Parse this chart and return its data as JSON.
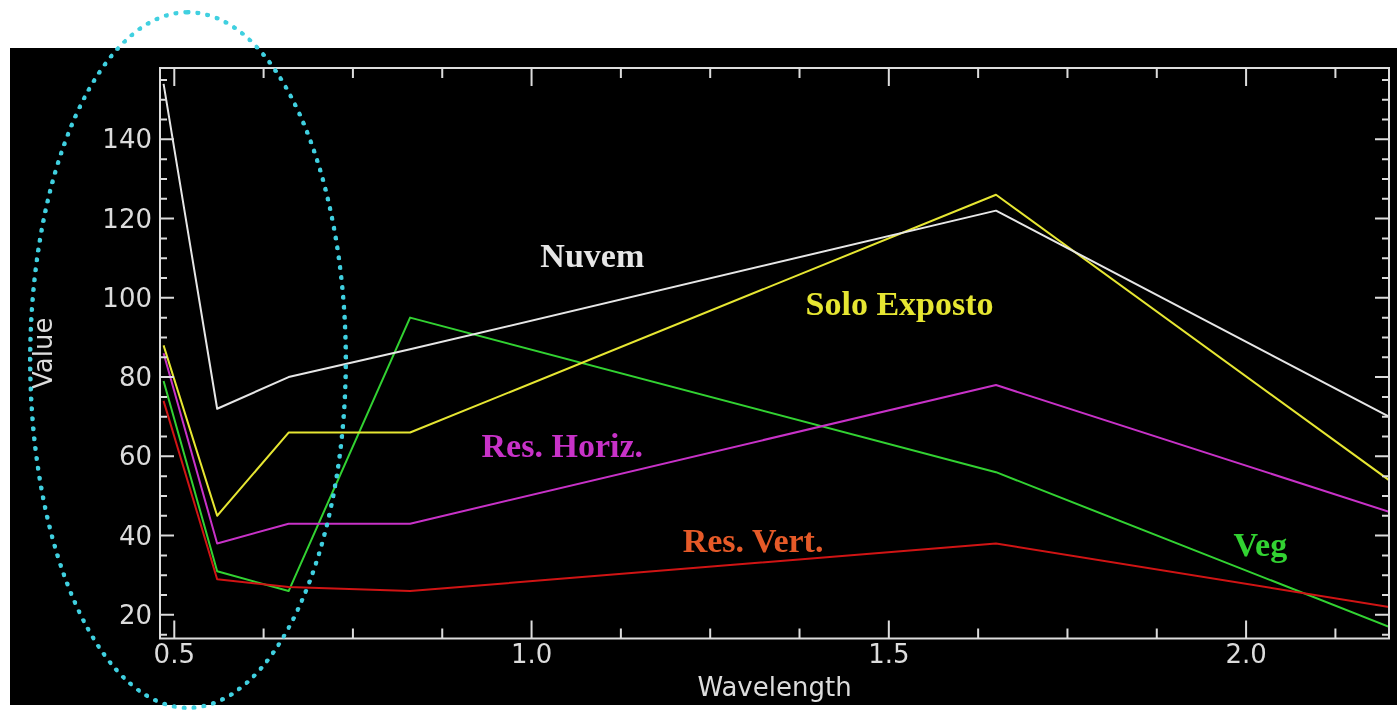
{
  "chart_data": {
    "type": "line",
    "xlabel": "Wavelength",
    "ylabel": "Value",
    "x": [
      0.485,
      0.56,
      0.66,
      0.83,
      1.65,
      2.2
    ],
    "xlim": [
      0.48,
      2.2
    ],
    "xticks": [
      0.5,
      {
        "value": 0.625,
        "label": null
      },
      {
        "value": 0.75,
        "label": null
      },
      {
        "value": 0.875,
        "label": null
      },
      {
        "value": 1,
        "label": "1.0"
      },
      {
        "value": 1.125,
        "label": null
      },
      {
        "value": 1.25,
        "label": null
      },
      {
        "value": 1.375,
        "label": null
      },
      1.5,
      {
        "value": 1.625,
        "label": null
      },
      {
        "value": 1.75,
        "label": null
      },
      {
        "value": 1.875,
        "label": null
      },
      {
        "value": 2,
        "label": "2.0"
      },
      {
        "value": 2.125,
        "label": null
      }
    ],
    "ylim": [
      14,
      158
    ],
    "yticks": [
      {
        "value": 15,
        "label": null
      },
      20,
      {
        "value": 25,
        "label": null
      },
      {
        "value": 30,
        "label": null
      },
      {
        "value": 35,
        "label": null
      },
      40,
      {
        "value": 45,
        "label": null
      },
      {
        "value": 50,
        "label": null
      },
      {
        "value": 55,
        "label": null
      },
      60,
      {
        "value": 65,
        "label": null
      },
      {
        "value": 70,
        "label": null
      },
      {
        "value": 75,
        "label": null
      },
      80,
      {
        "value": 85,
        "label": null
      },
      {
        "value": 90,
        "label": null
      },
      {
        "value": 95,
        "label": null
      },
      100,
      {
        "value": 105,
        "label": null
      },
      {
        "value": 110,
        "label": null
      },
      {
        "value": 115,
        "label": null
      },
      120,
      {
        "value": 125,
        "label": null
      },
      {
        "value": 130,
        "label": null
      },
      {
        "value": 135,
        "label": null
      },
      140,
      {
        "value": 145,
        "label": null
      },
      {
        "value": 150,
        "label": null
      },
      {
        "value": 155,
        "label": null
      }
    ],
    "series": [
      {
        "name": "Nuvem",
        "color": "#e6e6e6",
        "values": [
          154,
          72,
          80,
          87,
          122,
          70
        ]
      },
      {
        "name": "Solo Exposto",
        "color": "#e6e632",
        "values": [
          88,
          45,
          66,
          66,
          126,
          54
        ]
      },
      {
        "name": "Res. Horiz.",
        "color": "#c832c8",
        "values": [
          86,
          38,
          43,
          43,
          78,
          46
        ]
      },
      {
        "name": "Res. Vert.",
        "color": "#d01414",
        "values": [
          74,
          29,
          27,
          26,
          38,
          22
        ]
      },
      {
        "name": "Veg",
        "color": "#32d232",
        "values": [
          79,
          31,
          26,
          95,
          56,
          17
        ]
      }
    ],
    "grid": false,
    "legend": false,
    "marker": "none",
    "line_style": "solid"
  }
}
